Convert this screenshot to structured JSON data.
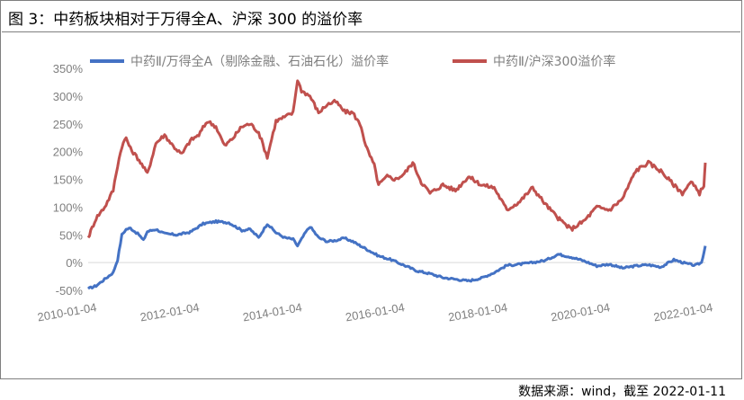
{
  "title": "图 3：中药板块相对于万得全A、沪深 300 的溢价率",
  "source": "数据来源：wind，截至 2022-01-11",
  "chart_data": {
    "type": "line",
    "title": "图 3：中药板块相对于万得全A、沪深 300 的溢价率",
    "xlabel": "",
    "ylabel": "",
    "ylim": [
      -50,
      350
    ],
    "yticks": [
      -50,
      0,
      50,
      100,
      150,
      200,
      250,
      300,
      350
    ],
    "ytick_labels": [
      "-50%",
      "0%",
      "50%",
      "100%",
      "150%",
      "200%",
      "250%",
      "300%",
      "350%"
    ],
    "x_range": [
      "2010-01-04",
      "2022-01-11"
    ],
    "xtick_labels": [
      "2010-01-04",
      "2012-01-04",
      "2014-01-04",
      "2016-01-04",
      "2018-01-04",
      "2020-01-04",
      "2022-01-04"
    ],
    "grid": false,
    "legend": "top",
    "series": [
      {
        "name": "中药Ⅱ/万得全A（剔除金融、石油石化）溢价率",
        "color": "#4472c4",
        "points": [
          [
            "2010-01-04",
            -47
          ],
          [
            "2010-03-01",
            -42
          ],
          [
            "2010-05-01",
            -30
          ],
          [
            "2010-07-01",
            -18
          ],
          [
            "2010-08-01",
            5
          ],
          [
            "2010-09-01",
            50
          ],
          [
            "2010-10-01",
            60
          ],
          [
            "2010-11-01",
            62
          ],
          [
            "2011-01-01",
            50
          ],
          [
            "2011-02-01",
            40
          ],
          [
            "2011-03-01",
            56
          ],
          [
            "2011-05-01",
            60
          ],
          [
            "2011-07-01",
            52
          ],
          [
            "2011-10-01",
            50
          ],
          [
            "2012-01-01",
            55
          ],
          [
            "2012-04-01",
            70
          ],
          [
            "2012-07-01",
            74
          ],
          [
            "2012-10-01",
            72
          ],
          [
            "2013-01-01",
            58
          ],
          [
            "2013-03-01",
            60
          ],
          [
            "2013-05-01",
            45
          ],
          [
            "2013-07-01",
            70
          ],
          [
            "2013-09-01",
            54
          ],
          [
            "2013-11-01",
            45
          ],
          [
            "2014-01-01",
            42
          ],
          [
            "2014-02-01",
            30
          ],
          [
            "2014-04-01",
            55
          ],
          [
            "2014-05-01",
            65
          ],
          [
            "2014-07-01",
            45
          ],
          [
            "2014-09-01",
            38
          ],
          [
            "2014-11-01",
            40
          ],
          [
            "2015-01-01",
            44
          ],
          [
            "2015-03-01",
            38
          ],
          [
            "2015-06-01",
            25
          ],
          [
            "2015-09-01",
            12
          ],
          [
            "2015-12-01",
            5
          ],
          [
            "2016-03-01",
            -5
          ],
          [
            "2016-06-01",
            -15
          ],
          [
            "2016-09-01",
            -20
          ],
          [
            "2016-12-01",
            -27
          ],
          [
            "2017-03-01",
            -30
          ],
          [
            "2017-06-01",
            -33
          ],
          [
            "2017-09-01",
            -28
          ],
          [
            "2017-12-01",
            -18
          ],
          [
            "2018-03-01",
            -5
          ],
          [
            "2018-06-01",
            -3
          ],
          [
            "2018-09-01",
            0
          ],
          [
            "2018-12-01",
            4
          ],
          [
            "2019-03-01",
            15
          ],
          [
            "2019-06-01",
            10
          ],
          [
            "2019-09-01",
            3
          ],
          [
            "2019-12-01",
            -6
          ],
          [
            "2020-03-01",
            -3
          ],
          [
            "2020-06-01",
            -10
          ],
          [
            "2020-09-01",
            -6
          ],
          [
            "2020-12-01",
            -4
          ],
          [
            "2021-03-01",
            -8
          ],
          [
            "2021-06-01",
            5
          ],
          [
            "2021-09-01",
            -2
          ],
          [
            "2021-11-01",
            -5
          ],
          [
            "2021-12-15",
            0
          ],
          [
            "2022-01-11",
            30
          ]
        ]
      },
      {
        "name": "中药Ⅱ/沪深300溢价率",
        "color": "#c0504d",
        "points": [
          [
            "2010-01-04",
            45
          ],
          [
            "2010-03-01",
            80
          ],
          [
            "2010-05-01",
            100
          ],
          [
            "2010-07-01",
            130
          ],
          [
            "2010-08-01",
            175
          ],
          [
            "2010-09-01",
            210
          ],
          [
            "2010-10-01",
            225
          ],
          [
            "2010-11-01",
            205
          ],
          [
            "2011-01-01",
            185
          ],
          [
            "2011-03-01",
            160
          ],
          [
            "2011-05-01",
            215
          ],
          [
            "2011-07-01",
            230
          ],
          [
            "2011-09-01",
            210
          ],
          [
            "2011-11-01",
            195
          ],
          [
            "2012-01-01",
            220
          ],
          [
            "2012-03-01",
            230
          ],
          [
            "2012-05-01",
            255
          ],
          [
            "2012-07-01",
            245
          ],
          [
            "2012-09-01",
            210
          ],
          [
            "2012-11-01",
            225
          ],
          [
            "2013-01-01",
            245
          ],
          [
            "2013-03-01",
            250
          ],
          [
            "2013-05-01",
            235
          ],
          [
            "2013-07-01",
            190
          ],
          [
            "2013-09-01",
            255
          ],
          [
            "2013-11-01",
            262
          ],
          [
            "2014-01-01",
            270
          ],
          [
            "2014-02-01",
            330
          ],
          [
            "2014-03-01",
            310
          ],
          [
            "2014-05-01",
            300
          ],
          [
            "2014-07-01",
            270
          ],
          [
            "2014-09-01",
            285
          ],
          [
            "2014-11-01",
            290
          ],
          [
            "2015-01-01",
            272
          ],
          [
            "2015-03-01",
            270
          ],
          [
            "2015-05-01",
            245
          ],
          [
            "2015-06-01",
            210
          ],
          [
            "2015-08-01",
            175
          ],
          [
            "2015-09-01",
            140
          ],
          [
            "2015-11-01",
            155
          ],
          [
            "2016-01-01",
            150
          ],
          [
            "2016-03-01",
            160
          ],
          [
            "2016-05-01",
            180
          ],
          [
            "2016-07-01",
            145
          ],
          [
            "2016-09-01",
            125
          ],
          [
            "2016-12-01",
            140
          ],
          [
            "2017-03-01",
            130
          ],
          [
            "2017-06-01",
            155
          ],
          [
            "2017-09-01",
            140
          ],
          [
            "2017-12-01",
            135
          ],
          [
            "2018-03-01",
            95
          ],
          [
            "2018-06-01",
            110
          ],
          [
            "2018-09-01",
            135
          ],
          [
            "2018-12-01",
            105
          ],
          [
            "2019-03-01",
            80
          ],
          [
            "2019-06-01",
            60
          ],
          [
            "2019-09-01",
            75
          ],
          [
            "2019-12-01",
            100
          ],
          [
            "2020-03-01",
            95
          ],
          [
            "2020-06-01",
            115
          ],
          [
            "2020-09-01",
            165
          ],
          [
            "2020-12-01",
            180
          ],
          [
            "2021-03-01",
            165
          ],
          [
            "2021-06-01",
            140
          ],
          [
            "2021-08-01",
            125
          ],
          [
            "2021-10-01",
            145
          ],
          [
            "2021-12-01",
            125
          ],
          [
            "2022-01-01",
            140
          ],
          [
            "2022-01-11",
            180
          ]
        ]
      }
    ]
  }
}
